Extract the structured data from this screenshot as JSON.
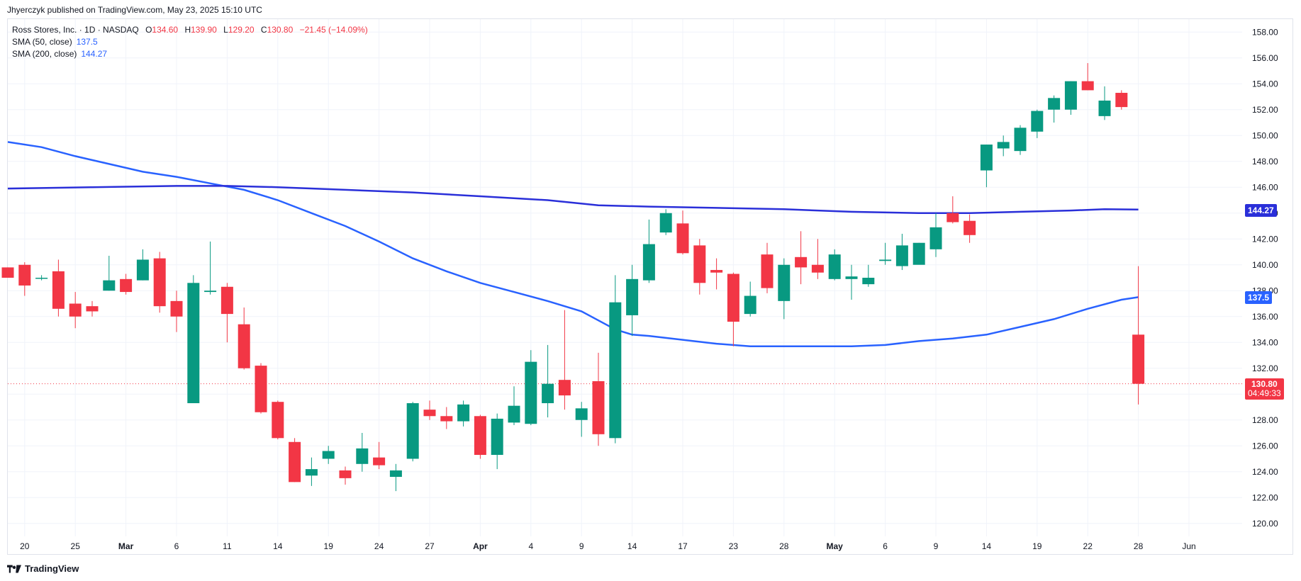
{
  "header": {
    "publisher": "Jhyerczyk published on TradingView.com, May 23, 2025 15:10 UTC"
  },
  "legend": {
    "symbol": "Ross Stores, Inc. · 1D · NASDAQ",
    "o_label": "O",
    "o_value": "134.60",
    "h_label": "H",
    "h_value": "139.90",
    "l_label": "L",
    "l_value": "129.20",
    "c_label": "C",
    "c_value": "130.80",
    "change": "−21.45 (−14.09%)",
    "sma50_label": "SMA (50, close)",
    "sma50_value": "137.5",
    "sma200_label": "SMA (200, close)",
    "sma200_value": "144.27"
  },
  "price_tags": {
    "sma200": "144.27",
    "sma50": "137.5",
    "last_price": "130.80",
    "countdown": "04:49:33"
  },
  "footer": {
    "brand": "TradingView"
  },
  "colors": {
    "up": "#089981",
    "down": "#f23645",
    "sma": "#2962ff",
    "sma200": "#2a2fd9",
    "grid": "#f0f3fa"
  },
  "chart_data": {
    "type": "candlestick",
    "ylim": [
      119,
      159
    ],
    "y_ticks": [
      "120.00",
      "122.00",
      "124.00",
      "126.00",
      "128.00",
      "130.00",
      "132.00",
      "134.00",
      "136.00",
      "138.00",
      "140.00",
      "142.00",
      "144.00",
      "146.00",
      "148.00",
      "150.00",
      "152.00",
      "154.00",
      "156.00",
      "158.00"
    ],
    "x_ticks": [
      {
        "i": 1,
        "label": "20"
      },
      {
        "i": 4,
        "label": "25"
      },
      {
        "i": 7,
        "label": "Mar",
        "bold": true
      },
      {
        "i": 10,
        "label": "6"
      },
      {
        "i": 13,
        "label": "11"
      },
      {
        "i": 16,
        "label": "14"
      },
      {
        "i": 19,
        "label": "19"
      },
      {
        "i": 22,
        "label": "24"
      },
      {
        "i": 25,
        "label": "27"
      },
      {
        "i": 28,
        "label": "Apr",
        "bold": true
      },
      {
        "i": 31,
        "label": "4"
      },
      {
        "i": 34,
        "label": "9"
      },
      {
        "i": 37,
        "label": "14"
      },
      {
        "i": 40,
        "label": "17"
      },
      {
        "i": 43,
        "label": "23"
      },
      {
        "i": 46,
        "label": "28"
      },
      {
        "i": 49,
        "label": "May",
        "bold": true
      },
      {
        "i": 52,
        "label": "6"
      },
      {
        "i": 55,
        "label": "9"
      },
      {
        "i": 58,
        "label": "14"
      },
      {
        "i": 61,
        "label": "19"
      },
      {
        "i": 64,
        "label": "22"
      },
      {
        "i": 67,
        "label": "28"
      },
      {
        "i": 70,
        "label": "Jun"
      }
    ],
    "candles": [
      [
        139.8,
        139.8,
        139.0,
        139.0
      ],
      [
        140.0,
        140.2,
        137.6,
        138.4
      ],
      [
        139.0,
        139.2,
        138.8,
        139.0
      ],
      [
        139.5,
        140.4,
        136.0,
        136.6
      ],
      [
        137.0,
        137.9,
        135.1,
        136.0
      ],
      [
        136.8,
        137.2,
        136.0,
        136.4
      ],
      [
        138.0,
        140.7,
        138.0,
        138.8
      ],
      [
        138.9,
        139.3,
        137.7,
        137.9
      ],
      [
        138.8,
        141.2,
        138.8,
        140.4
      ],
      [
        140.5,
        141.0,
        136.3,
        136.8
      ],
      [
        137.2,
        138.0,
        134.8,
        136.0
      ],
      [
        129.3,
        139.2,
        129.3,
        138.6
      ],
      [
        137.9,
        141.8,
        137.7,
        138.0
      ],
      [
        138.3,
        138.6,
        134.0,
        136.2
      ],
      [
        135.4,
        136.7,
        131.9,
        132.0
      ],
      [
        132.2,
        132.4,
        128.5,
        128.6
      ],
      [
        129.4,
        129.5,
        126.5,
        126.6
      ],
      [
        126.3,
        126.6,
        123.2,
        123.2
      ],
      [
        123.7,
        125.1,
        122.9,
        124.2
      ],
      [
        125.0,
        126.0,
        124.6,
        125.6
      ],
      [
        124.1,
        124.4,
        123.0,
        123.5
      ],
      [
        124.6,
        127.0,
        124.0,
        125.8
      ],
      [
        125.1,
        126.3,
        124.2,
        124.5
      ],
      [
        123.6,
        124.6,
        122.5,
        124.1
      ],
      [
        125.0,
        129.4,
        124.8,
        129.3
      ],
      [
        128.8,
        129.5,
        128.0,
        128.3
      ],
      [
        128.3,
        129.0,
        127.3,
        127.9
      ],
      [
        127.9,
        129.5,
        127.5,
        129.2
      ],
      [
        128.3,
        128.4,
        125.0,
        125.3
      ],
      [
        125.3,
        128.5,
        124.2,
        128.1
      ],
      [
        127.8,
        130.6,
        127.6,
        129.1
      ],
      [
        127.7,
        133.4,
        127.6,
        132.5
      ],
      [
        129.3,
        133.8,
        128.2,
        130.8
      ],
      [
        131.1,
        136.5,
        128.8,
        129.9
      ],
      [
        128.0,
        129.4,
        126.7,
        128.9
      ],
      [
        131.0,
        133.2,
        126.0,
        126.9
      ],
      [
        126.6,
        139.2,
        126.2,
        137.1
      ],
      [
        136.1,
        140.0,
        134.5,
        138.9
      ],
      [
        138.8,
        143.5,
        138.6,
        141.6
      ],
      [
        142.5,
        144.3,
        142.3,
        144.0
      ],
      [
        143.2,
        144.2,
        140.8,
        140.9
      ],
      [
        141.5,
        142.0,
        137.7,
        138.6
      ],
      [
        139.6,
        140.5,
        138.1,
        139.4
      ],
      [
        139.3,
        139.4,
        133.7,
        135.6
      ],
      [
        136.2,
        138.7,
        136.0,
        137.6
      ],
      [
        140.8,
        141.7,
        137.8,
        138.2
      ],
      [
        137.2,
        140.5,
        135.8,
        140.0
      ],
      [
        140.6,
        142.6,
        138.5,
        139.8
      ],
      [
        140.0,
        142.0,
        138.9,
        139.4
      ],
      [
        138.9,
        141.2,
        138.8,
        140.8
      ],
      [
        138.9,
        140.0,
        137.3,
        139.1
      ],
      [
        138.5,
        140.0,
        138.3,
        139.0
      ],
      [
        140.3,
        141.7,
        140.0,
        140.4
      ],
      [
        139.9,
        142.4,
        139.6,
        141.5
      ],
      [
        140.0,
        141.7,
        140.2,
        141.7
      ],
      [
        141.2,
        144.0,
        140.6,
        142.9
      ],
      [
        144.0,
        145.3,
        143.2,
        143.3
      ],
      [
        143.4,
        143.9,
        141.7,
        142.3
      ],
      [
        147.3,
        149.3,
        146.0,
        149.3
      ],
      [
        149.0,
        150.0,
        148.4,
        149.5
      ],
      [
        148.8,
        150.8,
        148.5,
        150.6
      ],
      [
        150.3,
        152.0,
        149.8,
        151.9
      ],
      [
        152.0,
        153.1,
        151.0,
        152.9
      ],
      [
        152.0,
        154.2,
        151.6,
        154.2
      ],
      [
        154.2,
        155.6,
        153.5,
        153.5
      ],
      [
        151.5,
        153.8,
        151.2,
        152.7
      ],
      [
        153.3,
        153.5,
        152.0,
        152.2
      ],
      [
        134.6,
        139.9,
        129.2,
        130.8
      ]
    ],
    "sma50": [
      [
        0,
        149.5
      ],
      [
        2,
        149.1
      ],
      [
        4,
        148.4
      ],
      [
        6,
        147.8
      ],
      [
        8,
        147.2
      ],
      [
        10,
        146.8
      ],
      [
        12,
        146.3
      ],
      [
        14,
        145.8
      ],
      [
        16,
        145.0
      ],
      [
        18,
        144.0
      ],
      [
        20,
        143.0
      ],
      [
        22,
        141.8
      ],
      [
        24,
        140.5
      ],
      [
        26,
        139.5
      ],
      [
        28,
        138.6
      ],
      [
        30,
        137.9
      ],
      [
        32,
        137.2
      ],
      [
        34,
        136.4
      ],
      [
        35,
        135.7
      ],
      [
        36,
        135.0
      ],
      [
        37,
        134.6
      ],
      [
        38,
        134.5
      ],
      [
        40,
        134.2
      ],
      [
        42,
        133.9
      ],
      [
        44,
        133.7
      ],
      [
        46,
        133.7
      ],
      [
        48,
        133.7
      ],
      [
        50,
        133.7
      ],
      [
        52,
        133.8
      ],
      [
        54,
        134.1
      ],
      [
        56,
        134.3
      ],
      [
        58,
        134.6
      ],
      [
        60,
        135.2
      ],
      [
        62,
        135.8
      ],
      [
        64,
        136.6
      ],
      [
        66,
        137.3
      ],
      [
        67,
        137.5
      ]
    ],
    "sma200": [
      [
        0,
        145.9
      ],
      [
        5,
        146.0
      ],
      [
        10,
        146.1
      ],
      [
        13,
        146.1
      ],
      [
        16,
        146.0
      ],
      [
        20,
        145.8
      ],
      [
        24,
        145.6
      ],
      [
        28,
        145.3
      ],
      [
        32,
        145.0
      ],
      [
        35,
        144.6
      ],
      [
        38,
        144.5
      ],
      [
        42,
        144.4
      ],
      [
        46,
        144.3
      ],
      [
        50,
        144.1
      ],
      [
        54,
        144.0
      ],
      [
        57,
        144.0
      ],
      [
        60,
        144.1
      ],
      [
        63,
        144.2
      ],
      [
        65,
        144.3
      ],
      [
        67,
        144.27
      ]
    ]
  }
}
